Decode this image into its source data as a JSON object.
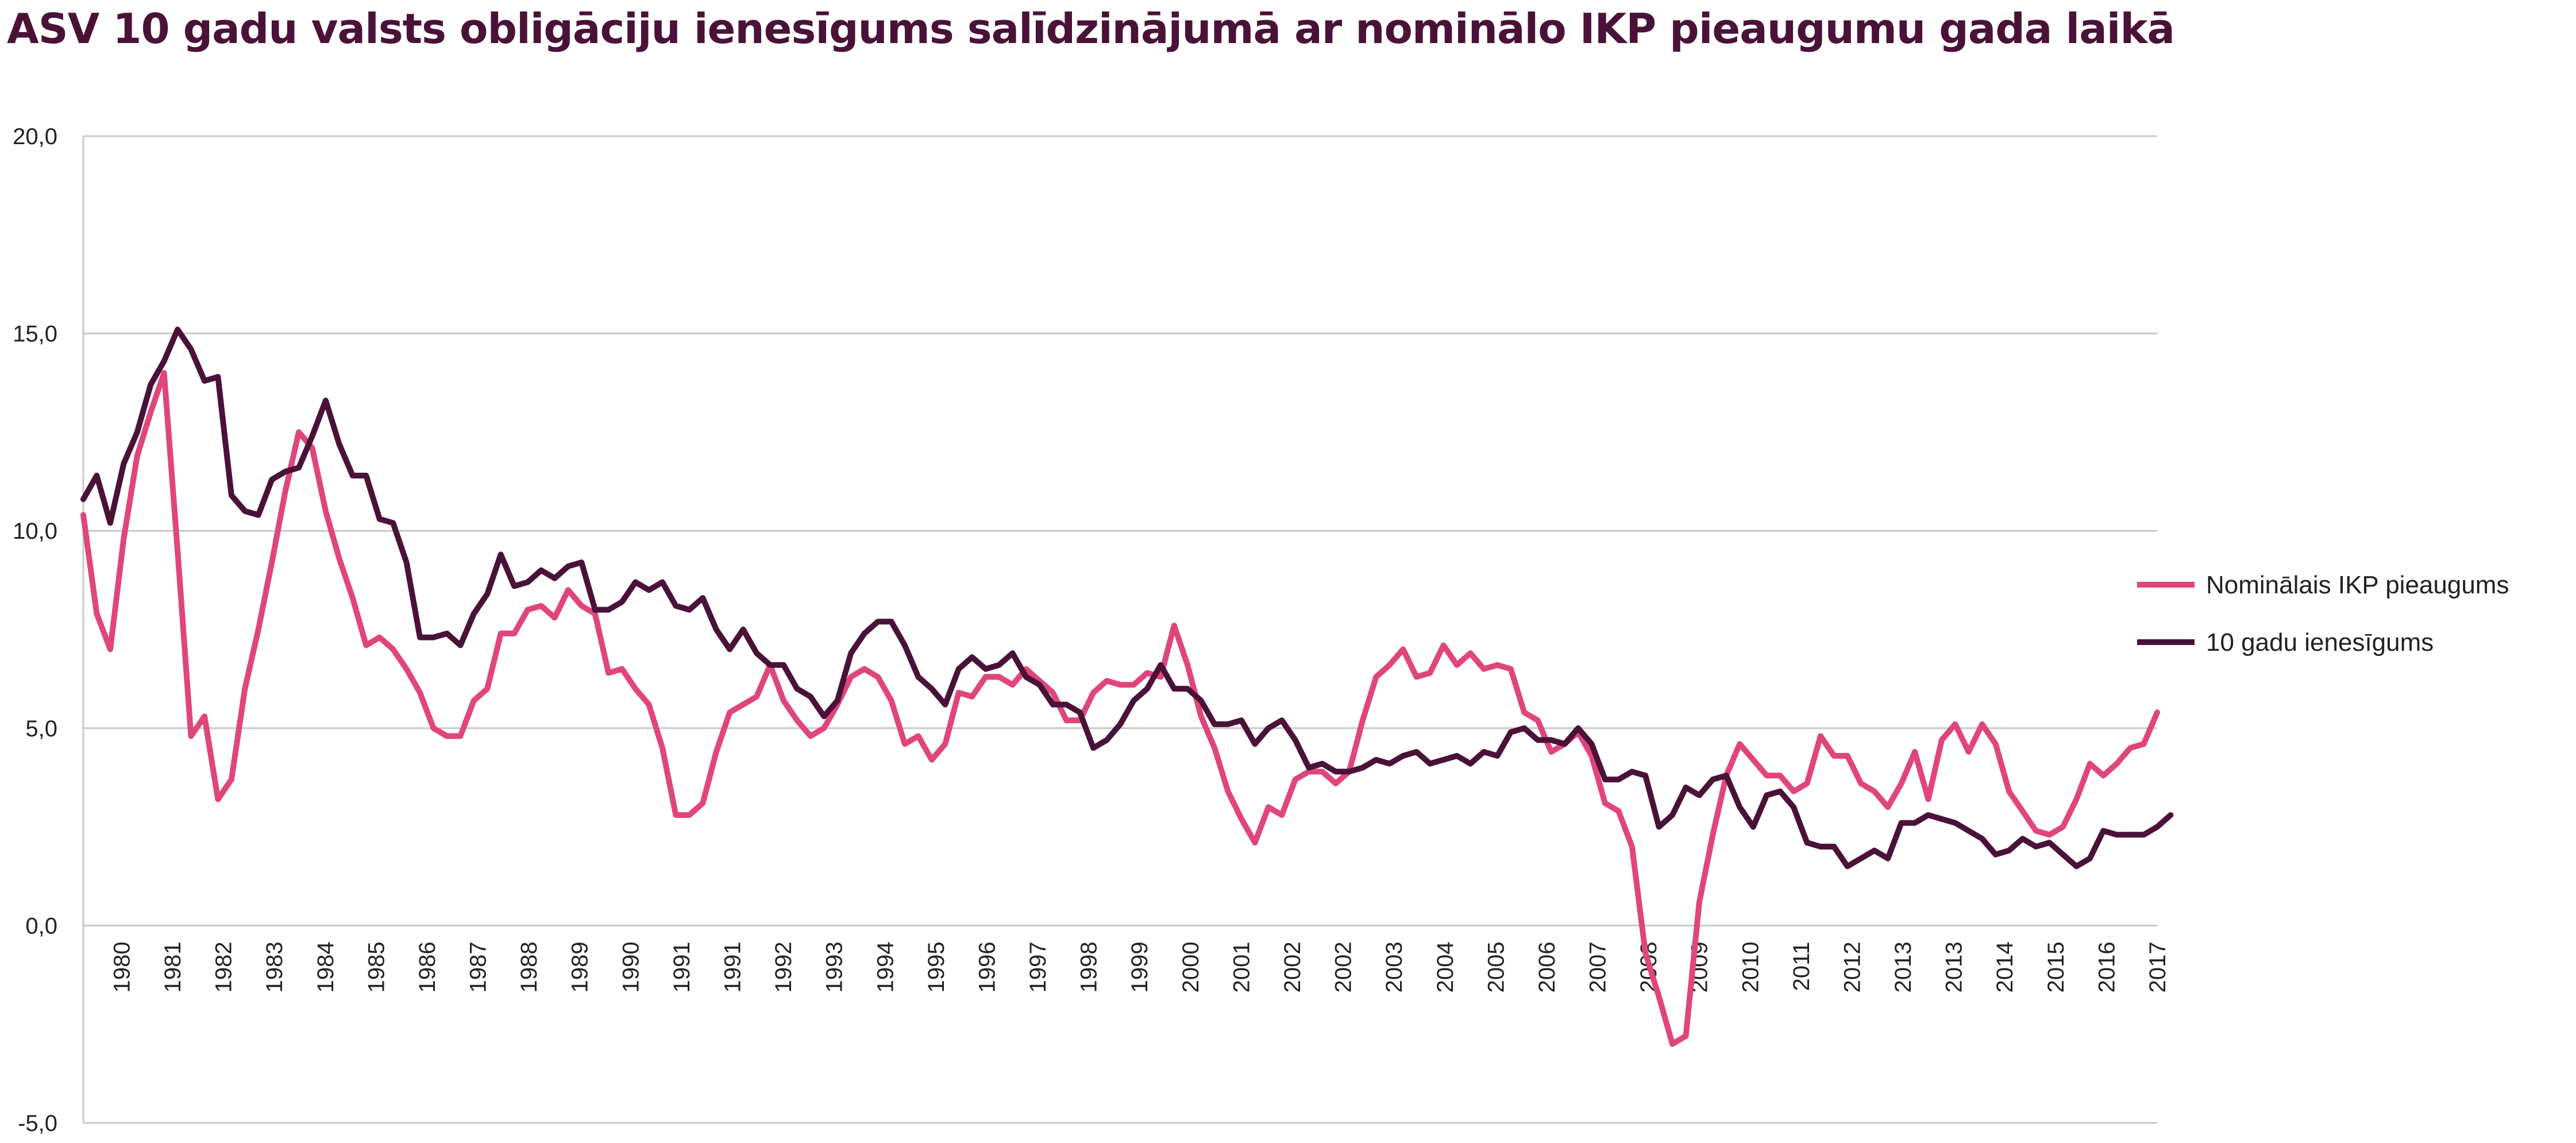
{
  "chart_data": {
    "type": "line",
    "title": "ASV 10 gadu valsts obligāciju ienesīgums salīdzinājumā ar nominālo IKP pieaugumu gada laikā",
    "xlabel": "",
    "ylabel": "",
    "ylim": [
      -5,
      20
    ],
    "yticks": [
      20,
      15,
      10,
      5,
      0,
      -5
    ],
    "ytick_labels": [
      "20,0",
      "15,0",
      "10,0",
      "5,0",
      "0,0",
      "-5,0"
    ],
    "x_start_year": 1979,
    "x_end_year": 2017.75,
    "x_ticks": [
      "1980",
      "1981",
      "1982",
      "1983",
      "1984",
      "1985",
      "1986",
      "1987",
      "1988",
      "1989",
      "1990",
      "1991",
      "1991",
      "1992",
      "1993",
      "1994",
      "1995",
      "1996",
      "1997",
      "1998",
      "1999",
      "2000",
      "2001",
      "2002",
      "2002",
      "2003",
      "2004",
      "2005",
      "2006",
      "2007",
      "2008",
      "2009",
      "2010",
      "2011",
      "2012",
      "2013",
      "2013",
      "2014",
      "2015",
      "2016",
      "2017"
    ],
    "grid": true,
    "legend_position": "right",
    "colors": {
      "gdp": "#e0457b",
      "yield": "#4a1239",
      "grid": "#c8c8c8",
      "title": "#4a1239"
    },
    "series": [
      {
        "name": "Nominālais IKP pieaugums",
        "values": [
          10.4,
          7.9,
          7.0,
          9.8,
          11.9,
          13.0,
          14.0,
          9.5,
          4.8,
          5.3,
          3.2,
          3.7,
          6.0,
          7.5,
          9.2,
          11.0,
          12.5,
          12.1,
          10.5,
          9.3,
          8.3,
          7.1,
          7.3,
          7.0,
          6.5,
          5.9,
          5.0,
          4.8,
          4.8,
          5.7,
          6.0,
          7.4,
          7.4,
          8.0,
          8.1,
          7.8,
          8.5,
          8.1,
          7.9,
          6.4,
          6.5,
          6.0,
          5.6,
          4.5,
          2.8,
          2.8,
          3.1,
          4.4,
          5.4,
          5.6,
          5.8,
          6.6,
          5.7,
          5.2,
          4.8,
          5.0,
          5.6,
          6.3,
          6.5,
          6.3,
          5.7,
          4.6,
          4.8,
          4.2,
          4.6,
          5.9,
          5.8,
          6.3,
          6.3,
          6.1,
          6.5,
          6.2,
          5.9,
          5.2,
          5.2,
          5.9,
          6.2,
          6.1,
          6.1,
          6.4,
          6.3,
          7.6,
          6.6,
          5.3,
          4.5,
          3.4,
          2.7,
          2.1,
          3.0,
          2.8,
          3.7,
          3.9,
          3.9,
          3.6,
          3.9,
          5.2,
          6.3,
          6.6,
          7.0,
          6.3,
          6.4,
          7.1,
          6.6,
          6.9,
          6.5,
          6.6,
          6.5,
          5.4,
          5.2,
          4.4,
          4.6,
          4.9,
          4.3,
          3.1,
          2.9,
          2.0,
          -0.7,
          -1.8,
          -3.0,
          -2.8,
          0.6,
          2.3,
          3.8,
          4.6,
          4.2,
          3.8,
          3.8,
          3.4,
          3.6,
          4.8,
          4.3,
          4.3,
          3.6,
          3.4,
          3.0,
          3.6,
          4.4,
          3.2,
          4.7,
          5.1,
          4.4,
          5.1,
          4.6,
          3.4,
          2.9,
          2.4,
          2.3,
          2.5,
          3.2,
          4.1,
          3.8,
          4.1,
          4.5,
          4.6,
          5.4
        ]
      },
      {
        "name": "10 gadu ienesīgums",
        "values": [
          10.8,
          11.4,
          10.2,
          11.7,
          12.5,
          13.7,
          14.3,
          15.1,
          14.6,
          13.8,
          13.9,
          10.9,
          10.5,
          10.4,
          11.3,
          11.5,
          11.6,
          12.4,
          13.3,
          12.2,
          11.4,
          11.4,
          10.3,
          10.2,
          9.2,
          7.3,
          7.3,
          7.4,
          7.1,
          7.9,
          8.4,
          9.4,
          8.6,
          8.7,
          9.0,
          8.8,
          9.1,
          9.2,
          8.0,
          8.0,
          8.2,
          8.7,
          8.5,
          8.7,
          8.1,
          8.0,
          8.3,
          7.5,
          7.0,
          7.5,
          6.9,
          6.6,
          6.6,
          6.0,
          5.8,
          5.3,
          5.7,
          6.9,
          7.4,
          7.7,
          7.7,
          7.1,
          6.3,
          6.0,
          5.6,
          6.5,
          6.8,
          6.5,
          6.6,
          6.9,
          6.3,
          6.1,
          5.6,
          5.6,
          5.4,
          4.5,
          4.7,
          5.1,
          5.7,
          6.0,
          6.6,
          6.0,
          6.0,
          5.7,
          5.1,
          5.1,
          5.2,
          4.6,
          5.0,
          5.2,
          4.7,
          4.0,
          4.1,
          3.9,
          3.9,
          4.0,
          4.2,
          4.1,
          4.3,
          4.4,
          4.1,
          4.2,
          4.3,
          4.1,
          4.4,
          4.3,
          4.9,
          5.0,
          4.7,
          4.7,
          4.6,
          5.0,
          4.6,
          3.7,
          3.7,
          3.9,
          3.8,
          2.5,
          2.8,
          3.5,
          3.3,
          3.7,
          3.8,
          3.0,
          2.5,
          3.3,
          3.4,
          3.0,
          2.1,
          2.0,
          2.0,
          1.5,
          1.7,
          1.9,
          1.7,
          2.6,
          2.6,
          2.8,
          2.7,
          2.6,
          2.4,
          2.2,
          1.8,
          1.9,
          2.2,
          2.0,
          2.1,
          1.8,
          1.5,
          1.7,
          2.4,
          2.3,
          2.3,
          2.3,
          2.5,
          2.8
        ]
      }
    ]
  }
}
